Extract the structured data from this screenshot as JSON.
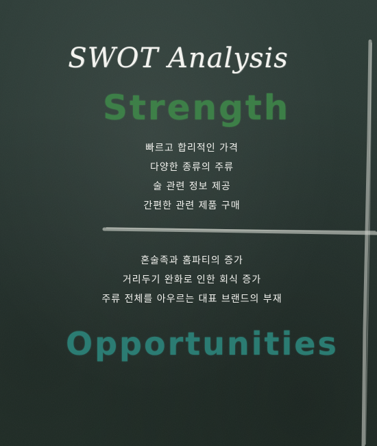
{
  "title": "SWOT Analysis",
  "sections": {
    "strength": {
      "heading": "Strength",
      "items": [
        "빠르고 합리적인 가격",
        "다양한 종류의 주류",
        "술 관련 정보 제공",
        "간편한 관련 제품 구매"
      ]
    },
    "opportunities": {
      "heading": "Opportunities",
      "items": [
        "혼술족과 홈파티의 증가",
        "거리두기 완화로 인한 회식 증가",
        "주류 전체를 아우르는 대표 브랜드의 부재"
      ]
    }
  },
  "colors": {
    "board": "#26342f",
    "chalk_white": "#f2f2ee",
    "strength_green": "#3f8a4a",
    "opportunities_teal": "#2d8a80"
  }
}
